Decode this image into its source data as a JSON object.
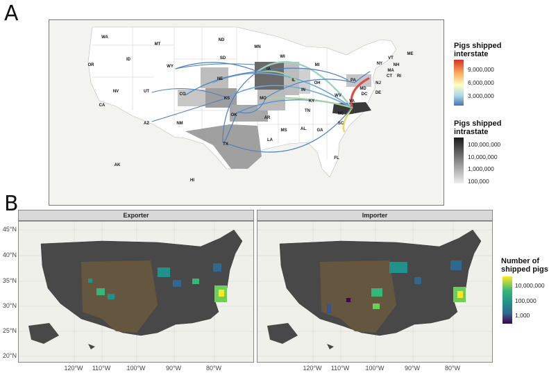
{
  "panels": {
    "a": "A",
    "b": "B"
  },
  "chart_data": [
    {
      "type": "flow-map",
      "panel": "A",
      "state_labels": [
        "WA",
        "MT",
        "ND",
        "MN",
        "WI",
        "MI",
        "NY",
        "VT",
        "NH",
        "ME",
        "MA",
        "CT",
        "RI",
        "OR",
        "ID",
        "WY",
        "SD",
        "IA",
        "IL",
        "IN",
        "OH",
        "PA",
        "NJ",
        "MD",
        "DE",
        "DC",
        "NV",
        "UT",
        "CA",
        "NE",
        "CO",
        "KS",
        "MO",
        "KY",
        "WV",
        "VA",
        "AZ",
        "NM",
        "OK",
        "AR",
        "TN",
        "NC",
        "SC",
        "MS",
        "AL",
        "GA",
        "LA",
        "TX",
        "FL",
        "AK",
        "HI"
      ],
      "legend_interstate": {
        "title": "Pigs shipped interstate",
        "ticks": [
          "9,000,000",
          "6,000,000",
          "3,000,000"
        ]
      },
      "legend_intrastate": {
        "title": "Pigs shipped intrastate",
        "ticks": [
          "100,000,000",
          "10,000,000",
          "1,000,000",
          "100,000"
        ]
      }
    },
    {
      "type": "heatmap",
      "panel": "B",
      "facets": [
        "Exporter",
        "Importer"
      ],
      "y_ticks": [
        "45°N",
        "40°N",
        "35°N",
        "30°N",
        "25°N",
        "20°N"
      ],
      "x_ticks": [
        "120°W",
        "110°W",
        "100°W",
        "90°W",
        "80°W"
      ],
      "legend": {
        "title": "Number of shipped pigs",
        "ticks": [
          "10,000,000",
          "100,000",
          "1,000"
        ]
      }
    }
  ],
  "colors": {
    "flow": "#4a7fc1",
    "grad_interstate": [
      "#d73027",
      "#fdae61",
      "#ffffbf",
      "#abd9e9",
      "#4575b4"
    ],
    "grad_intrastate": [
      "#1a1a1a",
      "#666666",
      "#b0b0b0",
      "#eeeeee"
    ],
    "grad_viridis": [
      "#fde725",
      "#35b779",
      "#21918c",
      "#31688e",
      "#440154"
    ],
    "county_base": "#4a4a4a",
    "county_brown": "#6b5a3e"
  }
}
